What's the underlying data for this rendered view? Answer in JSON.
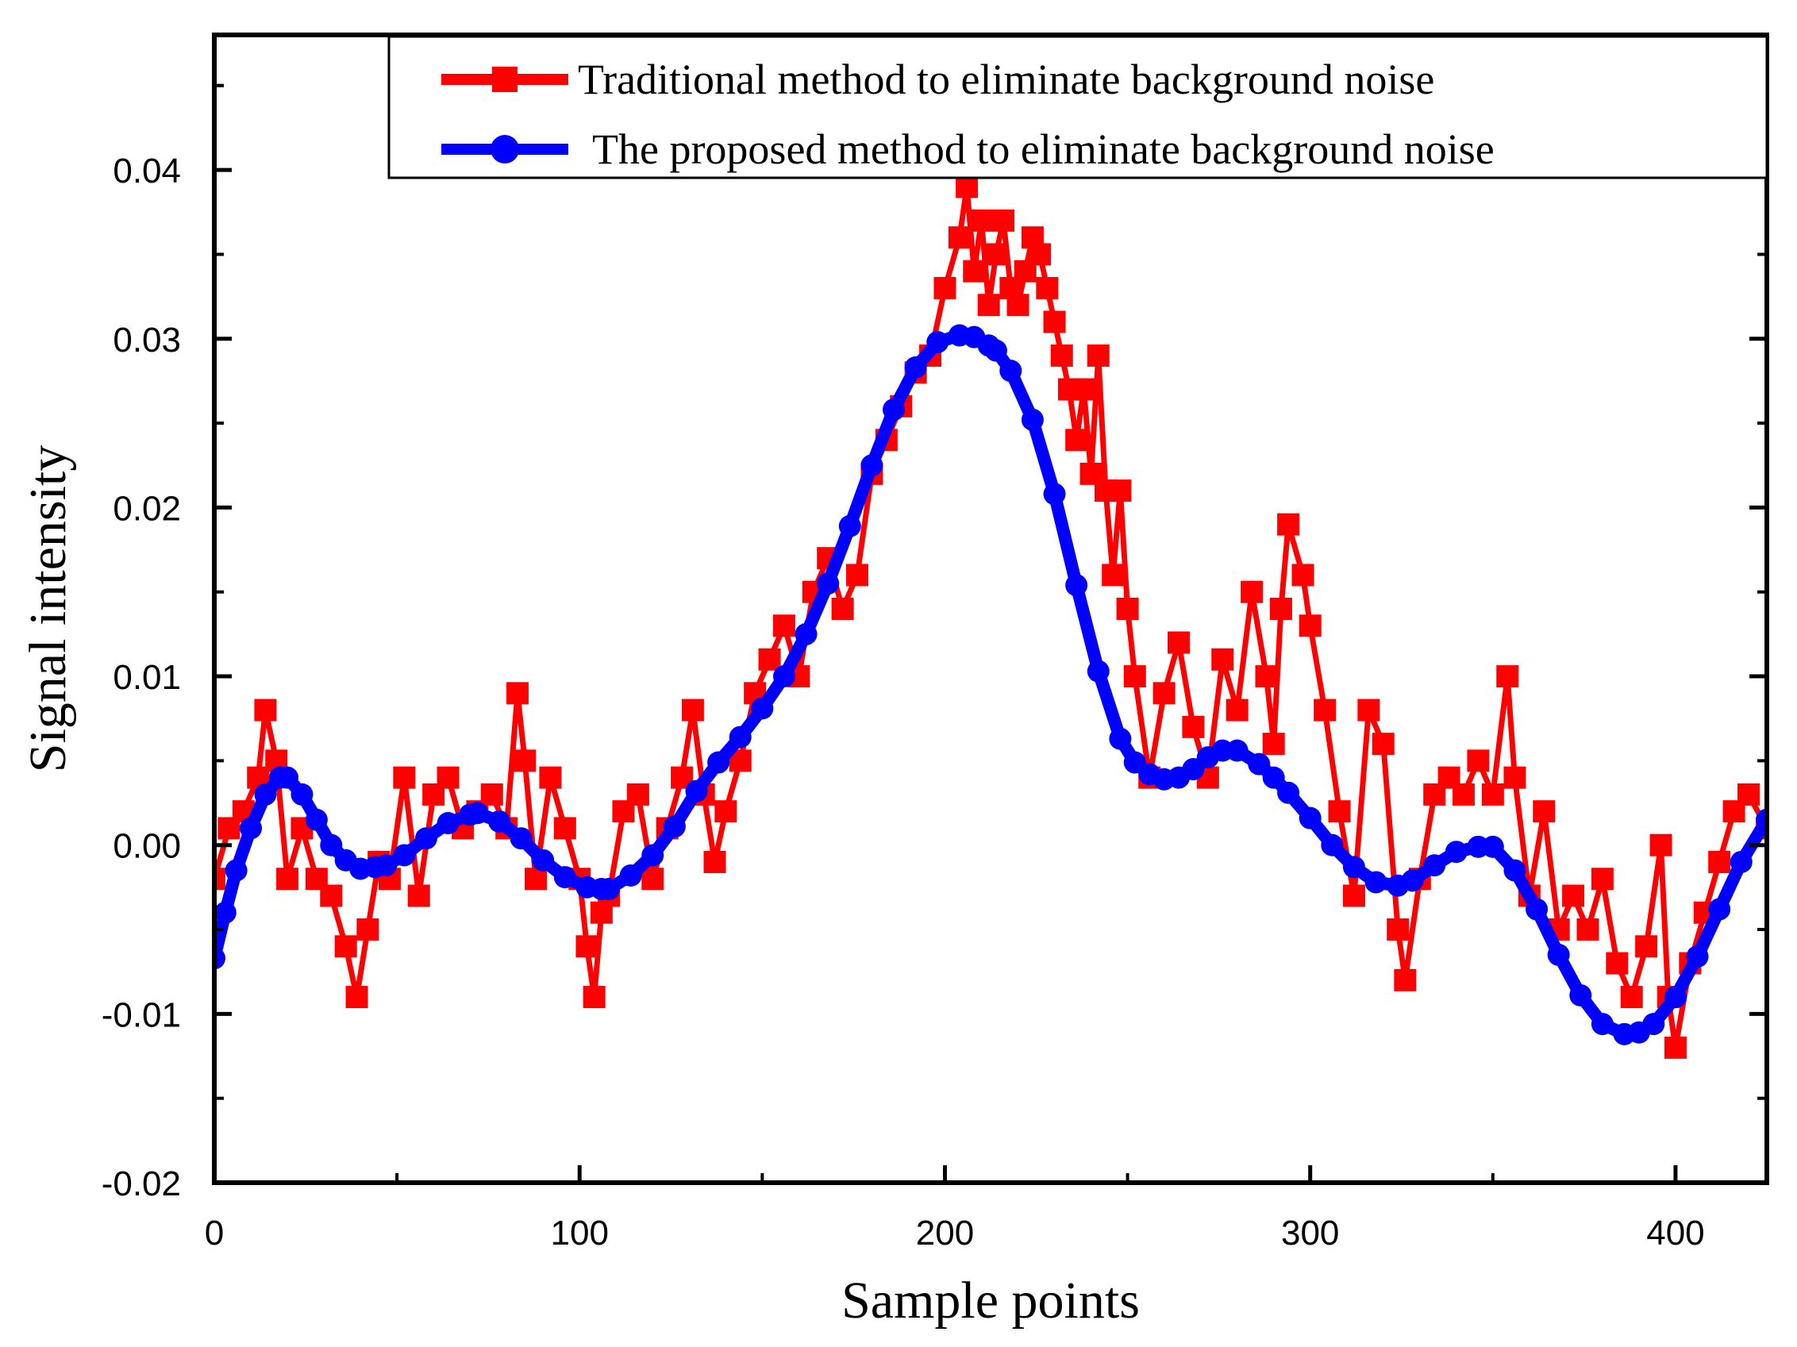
{
  "chart_data": {
    "type": "line",
    "title": "",
    "xlabel": "Sample points",
    "ylabel": "Signal intensity",
    "xlim": [
      0,
      425
    ],
    "ylim": [
      -0.02,
      0.048
    ],
    "xticks": [
      0,
      100,
      200,
      300,
      400
    ],
    "xtick_labels": [
      "0",
      "100",
      "200",
      "300",
      "400"
    ],
    "yticks": [
      -0.02,
      -0.01,
      0.0,
      0.01,
      0.02,
      0.03,
      0.04
    ],
    "ytick_labels": [
      "-0.02",
      "-0.01",
      "0.00",
      "0.01",
      "0.02",
      "0.03",
      "0.04"
    ],
    "legend_position": "top-right",
    "series": [
      {
        "name": "Traditional method to eliminate background noise",
        "color": "#ff0000",
        "marker": "square",
        "x": [
          0,
          4,
          8,
          12,
          14,
          17,
          20,
          24,
          28,
          32,
          36,
          39,
          42,
          45,
          48,
          52,
          56,
          60,
          64,
          68,
          72,
          76,
          80,
          83,
          85,
          88,
          92,
          96,
          100,
          102,
          104,
          106,
          108,
          112,
          116,
          120,
          124,
          128,
          131,
          134,
          137,
          140,
          144,
          148,
          152,
          156,
          160,
          164,
          168,
          172,
          176,
          180,
          184,
          188,
          192,
          196,
          200,
          204,
          206,
          208,
          210,
          212,
          214,
          216,
          218,
          220,
          222,
          224,
          226,
          228,
          230,
          232,
          234,
          236,
          238,
          240,
          242,
          244,
          246,
          248,
          250,
          252,
          256,
          260,
          264,
          268,
          272,
          276,
          280,
          284,
          288,
          290,
          292,
          294,
          298,
          300,
          304,
          308,
          312,
          316,
          320,
          324,
          326,
          330,
          334,
          338,
          342,
          346,
          350,
          354,
          356,
          360,
          364,
          368,
          372,
          376,
          380,
          384,
          388,
          392,
          396,
          398,
          400,
          404,
          408,
          412,
          416,
          420,
          425
        ],
        "y": [
          -0.002,
          0.001,
          0.002,
          0.004,
          0.008,
          0.005,
          -0.002,
          0.001,
          -0.002,
          -0.003,
          -0.006,
          -0.009,
          -0.005,
          -0.001,
          -0.002,
          0.004,
          -0.003,
          0.003,
          0.004,
          0.001,
          0.002,
          0.003,
          0.001,
          0.009,
          0.005,
          -0.002,
          0.004,
          0.001,
          -0.002,
          -0.006,
          -0.009,
          -0.004,
          -0.003,
          0.002,
          0.003,
          -0.002,
          0.001,
          0.004,
          0.008,
          0.003,
          -0.001,
          0.002,
          0.005,
          0.009,
          0.011,
          0.013,
          0.01,
          0.015,
          0.017,
          0.014,
          0.016,
          0.022,
          0.024,
          0.026,
          0.028,
          0.029,
          0.033,
          0.036,
          0.039,
          0.034,
          0.037,
          0.032,
          0.035,
          0.037,
          0.033,
          0.032,
          0.034,
          0.036,
          0.035,
          0.033,
          0.031,
          0.029,
          0.027,
          0.024,
          0.027,
          0.022,
          0.029,
          0.021,
          0.016,
          0.021,
          0.014,
          0.01,
          0.004,
          0.009,
          0.012,
          0.007,
          0.004,
          0.011,
          0.008,
          0.015,
          0.01,
          0.006,
          0.014,
          0.019,
          0.016,
          0.013,
          0.008,
          0.002,
          -0.003,
          0.008,
          0.006,
          -0.005,
          -0.008,
          -0.002,
          0.003,
          0.004,
          0.003,
          0.005,
          0.003,
          0.01,
          0.004,
          -0.003,
          0.002,
          -0.005,
          -0.003,
          -0.005,
          -0.002,
          -0.007,
          -0.009,
          -0.006,
          0.0,
          -0.009,
          -0.012,
          -0.007,
          -0.004,
          -0.001,
          0.002,
          0.003,
          0.001
        ]
      },
      {
        "name": "The proposed method to eliminate background noise",
        "color": "#0000ff",
        "marker": "circle",
        "x": [
          0,
          3,
          6,
          10,
          14,
          18,
          20,
          24,
          28,
          32,
          36,
          40,
          44,
          47,
          52,
          58,
          64,
          70,
          72,
          78,
          84,
          90,
          96,
          102,
          106,
          108,
          114,
          120,
          126,
          132,
          138,
          144,
          150,
          156,
          162,
          168,
          174,
          180,
          186,
          192,
          198,
          204,
          208,
          212,
          214,
          218,
          224,
          230,
          236,
          242,
          248,
          252,
          256,
          260,
          264,
          268,
          272,
          276,
          280,
          286,
          290,
          294,
          300,
          306,
          312,
          318,
          324,
          328,
          334,
          340,
          346,
          350,
          356,
          362,
          368,
          374,
          380,
          386,
          390,
          394,
          400,
          406,
          412,
          418,
          425
        ],
        "y": [
          -0.0067,
          -0.004,
          -0.0015,
          0.001,
          0.003,
          0.004,
          0.004,
          0.003,
          0.0015,
          0.0,
          -0.0009,
          -0.0014,
          -0.0013,
          -0.0012,
          -0.0006,
          0.0004,
          0.0013,
          0.0018,
          0.0019,
          0.0014,
          0.0004,
          -0.0009,
          -0.0019,
          -0.0025,
          -0.0026,
          -0.0026,
          -0.0018,
          -0.0006,
          0.0011,
          0.0032,
          0.0049,
          0.0064,
          0.0081,
          0.01,
          0.0125,
          0.0155,
          0.0189,
          0.0225,
          0.0258,
          0.0283,
          0.0298,
          0.0302,
          0.0301,
          0.0296,
          0.0293,
          0.0281,
          0.0252,
          0.0208,
          0.0154,
          0.0103,
          0.0063,
          0.0049,
          0.0042,
          0.0039,
          0.004,
          0.0045,
          0.0052,
          0.0056,
          0.0056,
          0.0048,
          0.004,
          0.0031,
          0.0016,
          0.0,
          -0.0013,
          -0.0022,
          -0.0024,
          -0.0021,
          -0.0012,
          -0.0004,
          -0.0001,
          -0.0001,
          -0.0015,
          -0.0038,
          -0.0065,
          -0.0089,
          -0.0106,
          -0.0112,
          -0.0111,
          -0.0106,
          -0.009,
          -0.0066,
          -0.0038,
          -0.001,
          0.0015
        ]
      }
    ]
  }
}
